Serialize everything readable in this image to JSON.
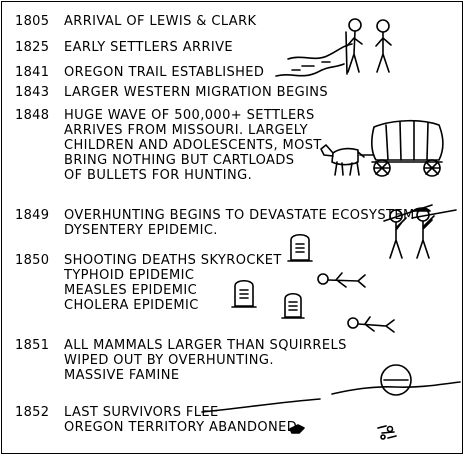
{
  "timeline": [
    {
      "year": "1805",
      "event": "Arrival of Lewis & Clark"
    },
    {
      "year": "1825",
      "event": "Early settlers arrive"
    },
    {
      "year": "1841",
      "event": "Oregon Trail established"
    },
    {
      "year": "1843",
      "event": "Larger western migration begins"
    },
    {
      "year": "1848",
      "event": "Huge wave of 500,000+ settlers\narrives from Missouri. Largely\nchildren and adolescents, most\nbring nothing but cartloads\nof bullets for hunting."
    },
    {
      "year": "1849",
      "event": "Overhunting begins to devastate ecosystem\nDysentery epidemic."
    },
    {
      "year": "1850",
      "event": "Shooting deaths skyrocket\nTyphoid epidemic\nMeasles epidemic\nCholera epidemic"
    },
    {
      "year": "1851",
      "event": "All mammals larger than squirrels\nwiped out by overhunting.\nMassive famine"
    },
    {
      "year": "1852",
      "event": "Last survivors flee\nOregon territory abandoned"
    }
  ],
  "illustrations": [
    {
      "icon": "lewis-and-clark-figures-icon"
    },
    {
      "icon": "river-icon"
    },
    {
      "icon": "covered-wagon-icon"
    },
    {
      "icon": "hunters-with-rifles-icon"
    },
    {
      "icon": "tombstone-icon"
    },
    {
      "icon": "fallen-body-icon"
    },
    {
      "icon": "setting-sun-icon"
    },
    {
      "icon": "abandoned-remains-icon"
    }
  ]
}
